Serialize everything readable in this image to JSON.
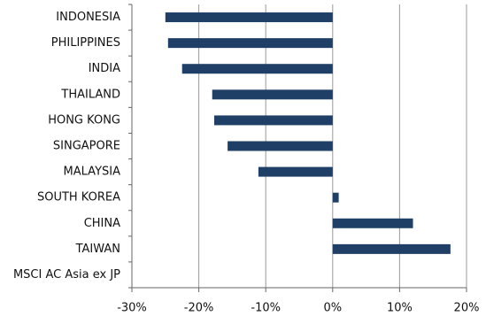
{
  "chart_data": {
    "type": "bar",
    "orientation": "horizontal",
    "categories": [
      "INDONESIA",
      "PHILIPPINES",
      "INDIA",
      "THAILAND",
      "HONG KONG",
      "SINGAPORE",
      "MALAYSIA",
      "SOUTH KOREA",
      "CHINA",
      "TAIWAN",
      "MSCI AC Asia ex JP"
    ],
    "values": [
      -25.0,
      -24.6,
      -22.5,
      -18.0,
      -17.7,
      -15.7,
      -11.1,
      0.9,
      12.0,
      17.6,
      0
    ],
    "color": "#1f3f66",
    "xlim": [
      -30,
      20
    ],
    "xticks": [
      {
        "value": -30,
        "label": "-30%"
      },
      {
        "value": -20,
        "label": "-20%"
      },
      {
        "value": -10,
        "label": "-10%"
      },
      {
        "value": 0,
        "label": "0%"
      },
      {
        "value": 10,
        "label": "10%"
      },
      {
        "value": 20,
        "label": "20%"
      }
    ],
    "grid": true
  }
}
